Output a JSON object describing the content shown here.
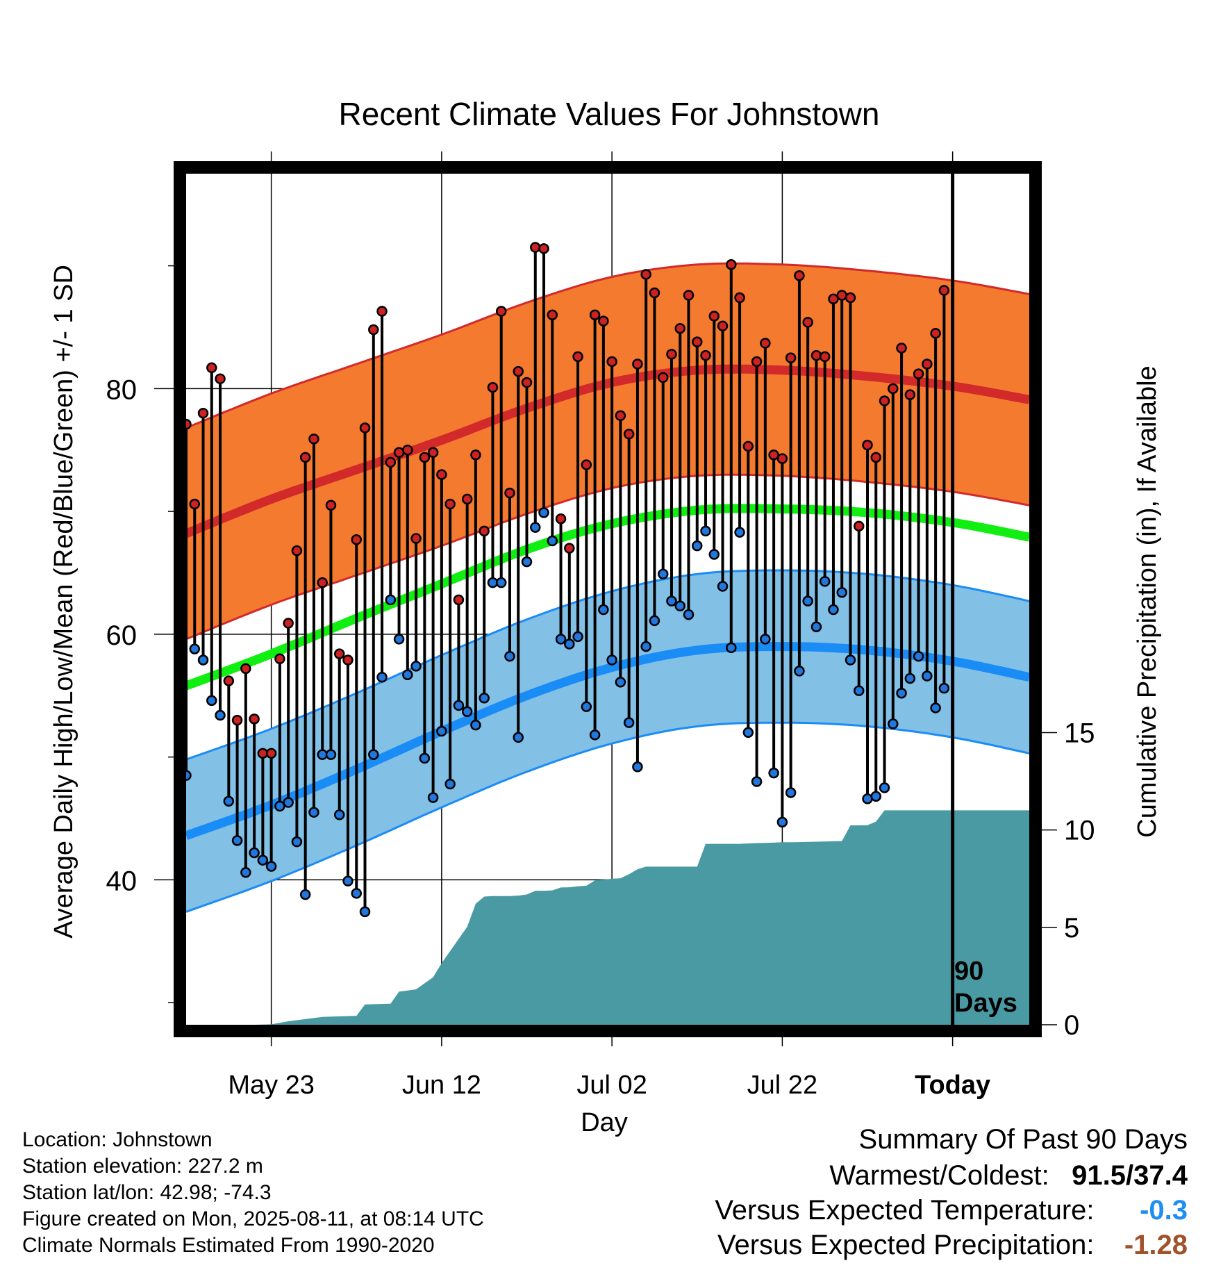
{
  "chart_data": {
    "type": "line",
    "title": "Recent Climate Values For Johnstown",
    "xlabel": "Day",
    "ylabel": "Average Daily High/Low/Mean (Red/Blue/Green) +/- 1 SD",
    "y2label": "Cumulative Precipitation (in), If Available",
    "x_ticks": [
      "May 23",
      "Jun 12",
      "Jul 02",
      "Jul 22",
      "Today"
    ],
    "x_range_days": [
      -90,
      9
    ],
    "today_marker": {
      "label_line1": "90",
      "label_line2": "Days"
    },
    "ylim": [
      28.2,
      97.5
    ],
    "y_ticks": [
      40,
      60,
      80
    ],
    "y2lim": [
      0,
      43.7
    ],
    "y2_ticks": [
      0,
      5,
      10,
      15
    ],
    "colors": {
      "high_band": "#f47a30",
      "high_line": "#d22a2a",
      "low_band": "#82c0e6",
      "low_line": "#1a8cf5",
      "mean_line": "#11ee11",
      "precip": "#4a9aa4",
      "high_dot": "#cc2222",
      "low_dot": "#2277dd"
    },
    "normals_day_index": [
      0,
      10,
      20,
      30,
      40,
      50,
      60,
      70,
      80,
      90,
      99
    ],
    "normal_high": [
      68.2,
      71.0,
      73.4,
      75.8,
      78.4,
      80.5,
      81.5,
      81.5,
      81.0,
      80.2,
      79.1
    ],
    "normal_high_sd": 8.6,
    "normal_low": [
      43.6,
      46.1,
      49.0,
      52.1,
      55.0,
      57.3,
      58.7,
      59.0,
      58.7,
      57.8,
      56.5
    ],
    "normal_low_sd": 6.2,
    "normal_mean": [
      55.8,
      58.4,
      61.3,
      64.1,
      66.9,
      69.0,
      70.1,
      70.2,
      69.9,
      69.1,
      67.9
    ],
    "series": [
      {
        "name": "High",
        "values": [
          77.1,
          70.6,
          78.0,
          81.7,
          80.8,
          56.2,
          53.0,
          57.2,
          53.1,
          50.3,
          50.3,
          58.0,
          60.9,
          66.8,
          74.4,
          75.9,
          64.2,
          70.5,
          58.4,
          57.9,
          67.7,
          76.8,
          84.8,
          86.3,
          74.0,
          74.8,
          75.0,
          67.8,
          74.4,
          74.8,
          73.0,
          70.6,
          62.8,
          71.0,
          74.6,
          68.4,
          80.1,
          86.3,
          71.5,
          81.4,
          80.5,
          91.5,
          91.4,
          86.0,
          69.4,
          67.0,
          82.6,
          73.8,
          86.0,
          85.5,
          82.2,
          77.8,
          76.3,
          82.0,
          89.3,
          87.8,
          80.9,
          82.8,
          84.9,
          87.6,
          83.8,
          82.7,
          85.9,
          85.1,
          90.1,
          87.4,
          75.3,
          82.2,
          83.7,
          74.6,
          74.3,
          82.5,
          89.2,
          85.4,
          82.7,
          82.6,
          87.3,
          87.6,
          87.4,
          68.8,
          75.4,
          74.4,
          79.0,
          80.0,
          83.3,
          79.5,
          81.2,
          82.0,
          84.5,
          88.0
        ]
      },
      {
        "name": "Low",
        "values": [
          48.5,
          58.8,
          57.9,
          54.6,
          53.4,
          46.4,
          43.2,
          40.6,
          42.2,
          41.6,
          41.1,
          46.0,
          46.3,
          43.1,
          38.8,
          45.5,
          50.2,
          50.2,
          45.3,
          39.9,
          38.9,
          37.4,
          50.2,
          56.5,
          62.8,
          59.6,
          56.7,
          57.4,
          49.9,
          46.7,
          52.1,
          47.8,
          54.2,
          53.7,
          52.6,
          54.8,
          64.2,
          64.2,
          58.2,
          51.6,
          65.9,
          68.7,
          69.9,
          67.6,
          59.6,
          59.2,
          59.8,
          54.1,
          51.8,
          62.0,
          57.9,
          56.1,
          52.8,
          49.2,
          59.0,
          61.1,
          64.9,
          62.7,
          62.3,
          61.6,
          67.2,
          68.4,
          66.5,
          63.9,
          58.9,
          68.3,
          52.0,
          48.0,
          59.6,
          48.7,
          44.7,
          47.1,
          57.0,
          62.7,
          60.6,
          64.3,
          62.0,
          63.4,
          57.9,
          55.4,
          46.6,
          46.8,
          47.5,
          52.7,
          55.2,
          56.4,
          58.2,
          56.6,
          54.0,
          55.6
        ]
      },
      {
        "name": "Precipitation",
        "precip_day_index": [
          0,
          4,
          6,
          8,
          10,
          12,
          16,
          17,
          20,
          21,
          24,
          25,
          26,
          27,
          29,
          30,
          33,
          34,
          35,
          36,
          37,
          38,
          39,
          40,
          41,
          42,
          43,
          44,
          45,
          46,
          47,
          48,
          49,
          50,
          51,
          52,
          53,
          54,
          55,
          56,
          57,
          58,
          59,
          60,
          61,
          62,
          63,
          64,
          65,
          66,
          67,
          68,
          69,
          70,
          71,
          72,
          73,
          74,
          75,
          76,
          77,
          78,
          79,
          80,
          81,
          82,
          83,
          84,
          85,
          86,
          87,
          88,
          89,
          90,
          91,
          92,
          93,
          94,
          95,
          96,
          97,
          98,
          99
        ],
        "values": [
          0,
          0,
          0,
          0,
          0.02,
          0.18,
          0.4,
          0.42,
          0.46,
          1.04,
          1.08,
          1.7,
          1.76,
          1.82,
          2.44,
          3.16,
          5.03,
          6.21,
          6.58,
          6.61,
          6.61,
          6.61,
          6.63,
          6.69,
          6.88,
          6.88,
          6.9,
          7.05,
          7.06,
          7.11,
          7.14,
          7.41,
          7.45,
          7.5,
          7.52,
          7.73,
          7.98,
          8.12,
          8.12,
          8.12,
          8.12,
          8.12,
          8.12,
          8.12,
          9.29,
          9.29,
          9.29,
          9.29,
          9.29,
          9.31,
          9.33,
          9.34,
          9.35,
          9.37,
          9.37,
          9.38,
          9.39,
          9.4,
          9.41,
          9.42,
          9.43,
          10.24,
          10.24,
          10.25,
          10.43,
          11.01,
          11.01,
          11.01,
          11.01,
          11.01,
          11.01,
          11.01,
          11.01,
          11.01,
          11.01,
          11.01,
          11.01,
          11.01,
          11.01,
          11.01,
          11.01,
          11.01,
          11.01
        ]
      }
    ]
  },
  "footer": {
    "location": "Location: Johnstown",
    "elevation": "Station elevation: 227.2 m",
    "latlon": "Station lat/lon: 42.98; -74.3",
    "created": "Figure created on Mon, 2025-08-11, at 08:14 UTC",
    "normals": "Climate Normals Estimated From 1990-2020"
  },
  "summary": {
    "title": "Summary Of Past 90 Days",
    "warm_cold_label": "Warmest/Coldest:",
    "warm_cold_value": "91.5/37.4",
    "temp_label": "Versus Expected Temperature:",
    "temp_value": "-0.3",
    "temp_color": "#1f8ef1",
    "precip_label": "Versus Expected Precipitation:",
    "precip_value": "-1.28",
    "precip_color": "#a0522d"
  }
}
